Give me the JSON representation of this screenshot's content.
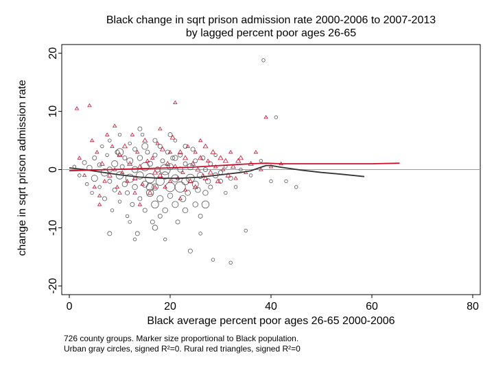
{
  "chart_data": {
    "type": "scatter",
    "title_lines": [
      "Black change in sqrt prison admission rate 2000-2006 to 2007-2013",
      "by lagged percent poor ages 26-65"
    ],
    "xlabel": "Black average percent poor ages 26-65 2000-2006",
    "ylabel": "change in sqrt prison admission rate",
    "xlim": [
      -1.5,
      81.5
    ],
    "ylim": [
      -21.5,
      21.5
    ],
    "xticks": [
      0,
      20,
      40,
      60,
      80
    ],
    "yticks": [
      -20,
      -10,
      0,
      10,
      20
    ],
    "reference_line_y": 0,
    "grid": false,
    "notes": [
      "726 county groups. Marker size proportional to Black population.",
      "Urban gray circles, signed R²=0. Rural red triangles, signed R²=0"
    ],
    "colors": {
      "urban": "#555555",
      "rural": "#c8102e",
      "refline": "#999999"
    },
    "series": [
      {
        "name": "Urban gray circles",
        "marker": "circle",
        "points": [
          [
            1,
            0.5,
            2
          ],
          [
            2,
            -1,
            2
          ],
          [
            3,
            1.2,
            3
          ],
          [
            3.5,
            -2.5,
            2
          ],
          [
            4,
            0.3,
            4
          ],
          [
            4.5,
            -4,
            2
          ],
          [
            5,
            2,
            3
          ],
          [
            5,
            -1.5,
            5
          ],
          [
            6,
            0.8,
            3
          ],
          [
            6,
            -3,
            2
          ],
          [
            6.5,
            4,
            2
          ],
          [
            7,
            -0.5,
            6
          ],
          [
            7,
            -5,
            3
          ],
          [
            7.5,
            2.5,
            2
          ],
          [
            8,
            0,
            4
          ],
          [
            8,
            -2,
            3
          ],
          [
            8,
            5,
            2
          ],
          [
            8.5,
            -7,
            2
          ],
          [
            9,
            1,
            5
          ],
          [
            9,
            -3.5,
            3
          ],
          [
            9.5,
            3,
            3
          ],
          [
            10,
            -1,
            6
          ],
          [
            10,
            -5.5,
            2
          ],
          [
            10,
            6,
            2
          ],
          [
            10.5,
            0.5,
            3
          ],
          [
            11,
            -2.5,
            4
          ],
          [
            11,
            2,
            3
          ],
          [
            11.5,
            -8,
            2
          ],
          [
            11.5,
            -4,
            3
          ],
          [
            12,
            1.5,
            5
          ],
          [
            12,
            -1.5,
            7
          ],
          [
            12,
            4.5,
            2
          ],
          [
            12.5,
            -6,
            3
          ],
          [
            13,
            0,
            5
          ],
          [
            13,
            -3,
            4
          ],
          [
            13,
            3.5,
            3
          ],
          [
            13.5,
            -11,
            3
          ],
          [
            14,
            -1,
            6
          ],
          [
            14,
            2,
            4
          ],
          [
            14,
            -5,
            3
          ],
          [
            14.5,
            6,
            2
          ],
          [
            15,
            0.5,
            7
          ],
          [
            15,
            -2.5,
            5
          ],
          [
            15,
            -7,
            3
          ],
          [
            15.5,
            3,
            3
          ],
          [
            16,
            -4,
            6
          ],
          [
            16,
            1,
            4
          ],
          [
            16,
            -1.5,
            8
          ],
          [
            16.5,
            -9,
            3
          ],
          [
            17,
            -3,
            5
          ],
          [
            17,
            2.5,
            3
          ],
          [
            17,
            -6,
            6
          ],
          [
            17.5,
            0,
            4
          ],
          [
            18,
            -2,
            7
          ],
          [
            18,
            4,
            3
          ],
          [
            18,
            -5,
            5
          ],
          [
            18.5,
            1.5,
            3
          ],
          [
            19,
            -1,
            6
          ],
          [
            19,
            -7,
            4
          ],
          [
            19,
            -12,
            2
          ],
          [
            19.5,
            3,
            3
          ],
          [
            20,
            -3,
            8
          ],
          [
            20,
            0.5,
            5
          ],
          [
            20,
            -4.5,
            4
          ],
          [
            20.5,
            2,
            3
          ],
          [
            21,
            -1.5,
            6
          ],
          [
            21,
            -6,
            5
          ],
          [
            21,
            5,
            2
          ],
          [
            21.5,
            -9,
            3
          ],
          [
            22,
            0,
            4
          ],
          [
            22,
            -3,
            9
          ],
          [
            22,
            2.5,
            3
          ],
          [
            22.5,
            -5,
            5
          ],
          [
            23,
            -2,
            6
          ],
          [
            23,
            1,
            3
          ],
          [
            23,
            -7,
            4
          ],
          [
            23.5,
            -4,
            4
          ],
          [
            24,
            0.5,
            5
          ],
          [
            24,
            -1.5,
            7
          ],
          [
            24,
            -14,
            3
          ],
          [
            24.5,
            3.5,
            3
          ],
          [
            25,
            -2.5,
            5
          ],
          [
            25,
            -6,
            4
          ],
          [
            25,
            1.5,
            3
          ],
          [
            25.5,
            -3.5,
            4
          ],
          [
            26,
            -1,
            5
          ],
          [
            26,
            -11,
            2
          ],
          [
            26.5,
            2,
            3
          ],
          [
            27,
            -4,
            4
          ],
          [
            27,
            -6,
            6
          ],
          [
            27,
            0,
            3
          ],
          [
            27.5,
            -2,
            4
          ],
          [
            28,
            1,
            3
          ],
          [
            28,
            -3,
            3
          ],
          [
            28.5,
            -15.5,
            2
          ],
          [
            29,
            -1,
            4
          ],
          [
            29,
            2.5,
            2
          ],
          [
            30,
            -2,
            3
          ],
          [
            30,
            -0.5,
            3
          ],
          [
            31,
            -4,
            2
          ],
          [
            31,
            0.5,
            2
          ],
          [
            32,
            -1.5,
            3
          ],
          [
            32,
            -16,
            2
          ],
          [
            33,
            -3,
            2
          ],
          [
            34,
            0,
            2
          ],
          [
            35,
            -10.5,
            2
          ],
          [
            36,
            -1,
            2
          ],
          [
            38,
            1.5,
            2
          ],
          [
            38.5,
            18.8,
            2
          ],
          [
            40,
            -2,
            2
          ],
          [
            41,
            9,
            2
          ],
          [
            43,
            -2,
            2
          ],
          [
            45,
            -3,
            2
          ],
          [
            8,
            -11,
            3
          ],
          [
            12,
            -9,
            2
          ],
          [
            17,
            -10,
            4
          ],
          [
            20,
            6,
            3
          ],
          [
            14,
            7,
            3
          ],
          [
            10,
            3,
            6
          ],
          [
            15,
            4,
            5
          ],
          [
            18,
            -8,
            3
          ],
          [
            23,
            4,
            3
          ],
          [
            26,
            -8,
            3
          ],
          [
            13,
            -12,
            2
          ],
          [
            17,
            5,
            3
          ],
          [
            21,
            2,
            4
          ],
          [
            19,
            0,
            9
          ],
          [
            16,
            -3,
            6
          ]
        ]
      },
      {
        "name": "Rural red triangles",
        "marker": "triangle",
        "points": [
          [
            1.5,
            10.5,
            2
          ],
          [
            2,
            2,
            2
          ],
          [
            3,
            -1,
            2
          ],
          [
            4,
            11,
            2
          ],
          [
            4.5,
            5,
            2
          ],
          [
            5,
            -3,
            2
          ],
          [
            5.5,
            3,
            2
          ],
          [
            6,
            -4.5,
            2
          ],
          [
            6.5,
            1,
            3
          ],
          [
            7,
            -2,
            2
          ],
          [
            7.5,
            6,
            2
          ],
          [
            8,
            -1,
            3
          ],
          [
            8.5,
            4,
            2
          ],
          [
            9,
            0,
            2
          ],
          [
            9.5,
            -3,
            2
          ],
          [
            10,
            2.5,
            3
          ],
          [
            10.5,
            -0.5,
            2
          ],
          [
            11,
            4,
            3
          ],
          [
            11.5,
            -2,
            2
          ],
          [
            12,
            1,
            3
          ],
          [
            12.5,
            6,
            2
          ],
          [
            13,
            -1.5,
            3
          ],
          [
            13.5,
            3,
            2
          ],
          [
            14,
            0.5,
            3
          ],
          [
            14.5,
            -2.5,
            2
          ],
          [
            15,
            5,
            3
          ],
          [
            15.5,
            1.5,
            2
          ],
          [
            16,
            -4,
            3
          ],
          [
            16.5,
            2,
            2
          ],
          [
            17,
            -0.5,
            3
          ],
          [
            17.5,
            4.5,
            2
          ],
          [
            18,
            -1,
            3
          ],
          [
            18.5,
            3.5,
            3
          ],
          [
            19,
            -3,
            2
          ],
          [
            19.5,
            1,
            3
          ],
          [
            20,
            -2,
            2
          ],
          [
            20.5,
            5.5,
            3
          ],
          [
            21,
            11.5,
            2
          ],
          [
            21,
            0.5,
            3
          ],
          [
            21.5,
            -1.5,
            2
          ],
          [
            22,
            3,
            3
          ],
          [
            22.5,
            -0.5,
            2
          ],
          [
            23,
            2,
            3
          ],
          [
            23.5,
            4,
            2
          ],
          [
            24,
            -2,
            3
          ],
          [
            24.5,
            1,
            3
          ],
          [
            25,
            3,
            2
          ],
          [
            25,
            -3,
            3
          ],
          [
            25.5,
            0,
            3
          ],
          [
            26,
            2,
            3
          ],
          [
            26.5,
            -1,
            2
          ],
          [
            27,
            4,
            3
          ],
          [
            27,
            -1.5,
            3
          ],
          [
            27.5,
            1.5,
            2
          ],
          [
            28,
            -0.5,
            3
          ],
          [
            28.5,
            3,
            3
          ],
          [
            29,
            0.5,
            2
          ],
          [
            29.5,
            -2,
            3
          ],
          [
            30,
            2,
            3
          ],
          [
            30.5,
            0,
            2
          ],
          [
            31,
            1.5,
            3
          ],
          [
            31.5,
            -1,
            3
          ],
          [
            32,
            3,
            2
          ],
          [
            32.5,
            0.5,
            3
          ],
          [
            33,
            -1.5,
            2
          ],
          [
            33.5,
            1.5,
            3
          ],
          [
            34,
            2,
            3
          ],
          [
            35,
            -0.5,
            2
          ],
          [
            36,
            1,
            3
          ],
          [
            37,
            3,
            2
          ],
          [
            38,
            0,
            2
          ],
          [
            39,
            9,
            2
          ],
          [
            40,
            0.5,
            2
          ],
          [
            42,
            1,
            2
          ],
          [
            9,
            7.5,
            2
          ],
          [
            13,
            -4,
            2
          ],
          [
            18,
            7,
            2
          ],
          [
            22,
            -5,
            2
          ],
          [
            26,
            5,
            2
          ],
          [
            14,
            -6,
            2
          ],
          [
            17,
            -3,
            2
          ],
          [
            20,
            3,
            2
          ],
          [
            23,
            -3.5,
            2
          ],
          [
            6,
            -6,
            2
          ],
          [
            10,
            -4,
            2
          ]
        ]
      }
    ],
    "fits": [
      {
        "name": "Urban fit",
        "points": [
          [
            0,
            0.3
          ],
          [
            3,
            0
          ],
          [
            6,
            -0.4
          ],
          [
            10,
            -0.9
          ],
          [
            14,
            -1.3
          ],
          [
            18,
            -1.5
          ],
          [
            22,
            -1.5
          ],
          [
            26,
            -1.3
          ],
          [
            30,
            -0.9
          ],
          [
            34,
            -0.5
          ],
          [
            36,
            -0.2
          ],
          [
            38,
            0.4
          ],
          [
            39,
            0.7
          ],
          [
            40,
            0.7
          ],
          [
            42,
            0.4
          ],
          [
            46,
            -0.1
          ],
          [
            50,
            -0.5
          ],
          [
            54,
            -0.8
          ],
          [
            58.5,
            -1.2
          ]
        ]
      },
      {
        "name": "Rural fit",
        "points": [
          [
            0,
            -0.2
          ],
          [
            4,
            -0.1
          ],
          [
            8,
            0
          ],
          [
            12,
            0.1
          ],
          [
            16,
            0.2
          ],
          [
            20,
            0.3
          ],
          [
            24,
            0.4
          ],
          [
            28,
            0.6
          ],
          [
            32,
            0.8
          ],
          [
            36,
            1
          ],
          [
            39,
            1.1
          ],
          [
            42,
            1
          ],
          [
            46,
            1
          ],
          [
            50,
            1
          ],
          [
            55,
            1
          ],
          [
            60,
            1
          ],
          [
            65.5,
            1.1
          ]
        ]
      }
    ]
  }
}
